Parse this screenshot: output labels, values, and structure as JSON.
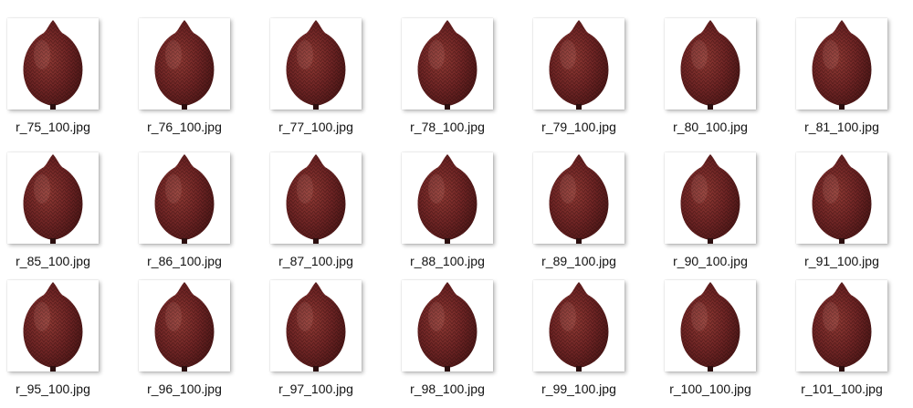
{
  "file_grid": {
    "item_icon": "salak-fruit-thumbnail",
    "colors": {
      "fruit_dark": "#4a1616",
      "fruit_mid": "#6e2424",
      "fruit_light": "#8f3a34",
      "stem": "#2b0e0e",
      "background": "#ffffff"
    },
    "rows": [
      [
        "r_75_100.jpg",
        "r_76_100.jpg",
        "r_77_100.jpg",
        "r_78_100.jpg",
        "r_79_100.jpg",
        "r_80_100.jpg",
        "r_81_100.jpg"
      ],
      [
        "r_85_100.jpg",
        "r_86_100.jpg",
        "r_87_100.jpg",
        "r_88_100.jpg",
        "r_89_100.jpg",
        "r_90_100.jpg",
        "r_91_100.jpg"
      ],
      [
        "r_95_100.jpg",
        "r_96_100.jpg",
        "r_97_100.jpg",
        "r_98_100.jpg",
        "r_99_100.jpg",
        "r_100_100.jpg",
        "r_101_100.jpg"
      ]
    ]
  }
}
